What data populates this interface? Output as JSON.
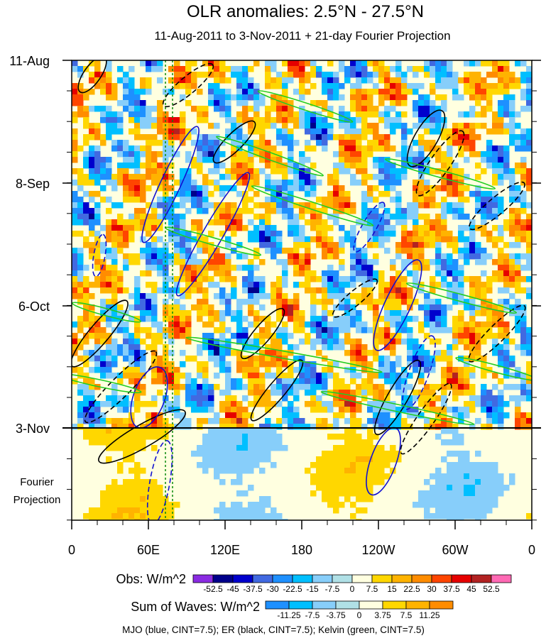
{
  "chart_data": {
    "type": "heatmap",
    "title": "OLR anomalies: 2.5°N - 27.5°N",
    "subtitle": "11-Aug-2011 to 3-Nov-2011 + 21-day Fourier Projection",
    "xlabel": "",
    "ylabel": "",
    "x_ticks": [
      "0",
      "60E",
      "120E",
      "180",
      "120W",
      "60W",
      "0"
    ],
    "y_ticks": [
      "11-Aug",
      "8-Sep",
      "6-Oct",
      "3-Nov"
    ],
    "projection_label": [
      "Fourier",
      "Projection"
    ],
    "obs_legend": {
      "label": "Obs: W/m^2",
      "levels": [
        "-52.5",
        "-45",
        "-37.5",
        "-30",
        "-22.5",
        "-15",
        "-7.5",
        "0",
        "7.5",
        "15",
        "22.5",
        "30",
        "37.5",
        "45",
        "52.5"
      ],
      "colors": [
        "#8a2be2",
        "#00008b",
        "#0000cd",
        "#4169e1",
        "#1e90ff",
        "#00bfff",
        "#87cefa",
        "#b0e0e6",
        "#ffffe0",
        "#ffd700",
        "#ffb300",
        "#ff8c00",
        "#ff4500",
        "#e60000",
        "#b22222",
        "#ff69b4"
      ]
    },
    "waves_legend": {
      "label": "Sum of Waves: W/m^2",
      "levels": [
        "-11.25",
        "-7.5",
        "-3.75",
        "0",
        "3.75",
        "7.5",
        "11.25"
      ],
      "colors": [
        "#1e90ff",
        "#00bfff",
        "#87cefa",
        "#b0e0e6",
        "#ffffe0",
        "#ffd700",
        "#ffb300",
        "#ff8c00"
      ]
    },
    "contours_note": "MJO (blue, CINT=7.5); ER (black, CINT=7.5); Kelvin (green, CINT=7.5)",
    "series": [
      {
        "name": "MJO",
        "color": "#1010d0"
      },
      {
        "name": "ER",
        "color": "#000000"
      },
      {
        "name": "Kelvin",
        "color": "#22cc22"
      }
    ]
  }
}
